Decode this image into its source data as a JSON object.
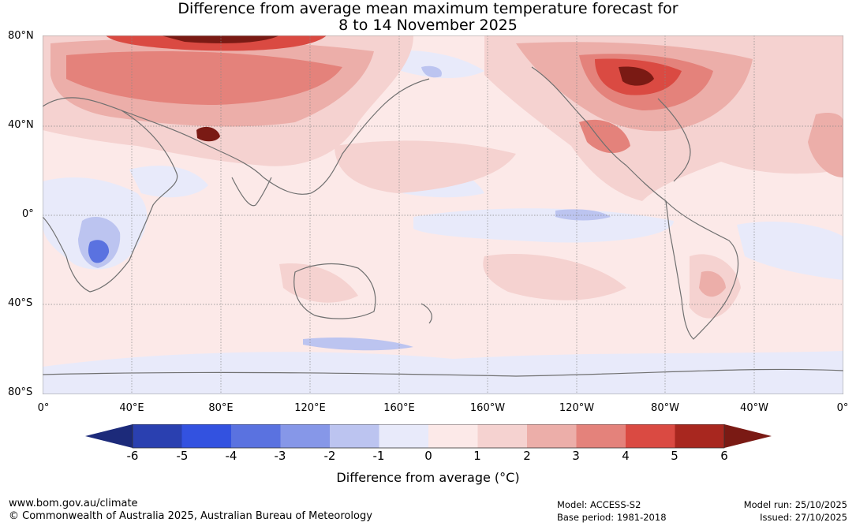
{
  "title": {
    "line1": "Difference from average mean maximum temperature forecast for",
    "line2": "8 to 14 November 2025"
  },
  "map": {
    "lat_labels": [
      "80°N",
      "40°N",
      "0°",
      "40°S",
      "80°S"
    ],
    "lon_labels": [
      "0°",
      "40°E",
      "80°E",
      "120°E",
      "160°E",
      "160°W",
      "120°W",
      "80°W",
      "40°W",
      "0°"
    ],
    "palette": {
      "neg6": "#1c2a7a",
      "neg5": "#2a40b0",
      "neg4": "#3352e0",
      "neg3": "#5a72e0",
      "neg2": "#8697e8",
      "neg1": "#bcc4f0",
      "zero_neg": "#e8eafa",
      "zero_pos": "#fce9e8",
      "pos1": "#f5d2d0",
      "pos2": "#ecaea9",
      "pos3": "#e4827b",
      "pos4": "#da4a42",
      "pos5": "#a8271f",
      "pos6": "#7a1a14"
    }
  },
  "colorbar": {
    "ticks": [
      "-6",
      "-5",
      "-4",
      "-3",
      "-2",
      "-1",
      "0",
      "1",
      "2",
      "3",
      "4",
      "5",
      "6"
    ],
    "label": "Difference from average (°C)",
    "colors": [
      "#1c2a7a",
      "#2a40b0",
      "#3352e0",
      "#5a72e0",
      "#8697e8",
      "#bcc4f0",
      "#e8eafa",
      "#fce9e8",
      "#f5d2d0",
      "#ecaea9",
      "#e4827b",
      "#da4a42",
      "#a8271f",
      "#7a1a14"
    ]
  },
  "footer": {
    "url": "www.bom.gov.au/climate",
    "copyright": "© Commonwealth of Australia 2025, Australian Bureau of Meteorology",
    "model": "Model: ACCESS-S2",
    "base_period": "Base period: 1981-2018",
    "model_run": "Model run: 25/10/2025",
    "issued": "Issued: 27/10/2025"
  }
}
